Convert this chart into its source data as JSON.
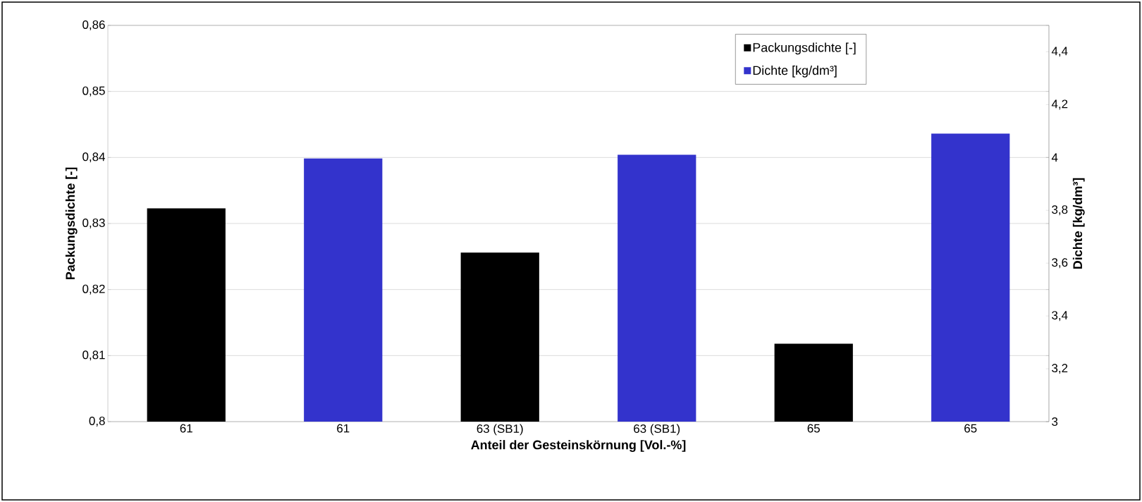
{
  "chart_data": {
    "type": "bar",
    "categories": [
      "61",
      "61",
      "63 (SB1)",
      "63 (SB1)",
      "65",
      "65"
    ],
    "xlabel": "Anteil der Gesteinskörnung [Vol.-%]",
    "ylabel": "Packungsdichte [-]",
    "y2label": "Dichte [kg/dm³]",
    "series": [
      {
        "name": "Packungsdichte [-]",
        "color": "#000000",
        "values": [
          0.8323,
          null,
          0.8256,
          null,
          0.8118,
          null
        ]
      },
      {
        "name": "Dichte [kg/dm³]",
        "color": "#3333cc",
        "axis": "y2",
        "values": [
          null,
          3.996,
          null,
          4.01,
          null,
          4.09
        ]
      }
    ],
    "ylim": [
      0.8,
      0.86
    ],
    "yticks": [
      {
        "value": 0.8,
        "label": "0,8"
      },
      {
        "value": 0.81,
        "label": "0,81"
      },
      {
        "value": 0.82,
        "label": "0,82"
      },
      {
        "value": 0.83,
        "label": "0,83"
      },
      {
        "value": 0.84,
        "label": "0,84"
      },
      {
        "value": 0.85,
        "label": "0,85"
      },
      {
        "value": 0.86,
        "label": "0,86"
      }
    ],
    "y2lim": [
      3,
      4.5
    ],
    "y2ticks": [
      3,
      {
        "value": 3.2,
        "label": "3,2"
      },
      {
        "value": 3.4,
        "label": "3,4"
      },
      {
        "value": 3.6,
        "label": "3,6"
      },
      {
        "value": 3.8,
        "label": "3,8"
      },
      4,
      {
        "value": 4.2,
        "label": "4,2"
      },
      {
        "value": 4.4,
        "label": "4,4"
      }
    ],
    "grid": "y",
    "legend": "top right"
  }
}
